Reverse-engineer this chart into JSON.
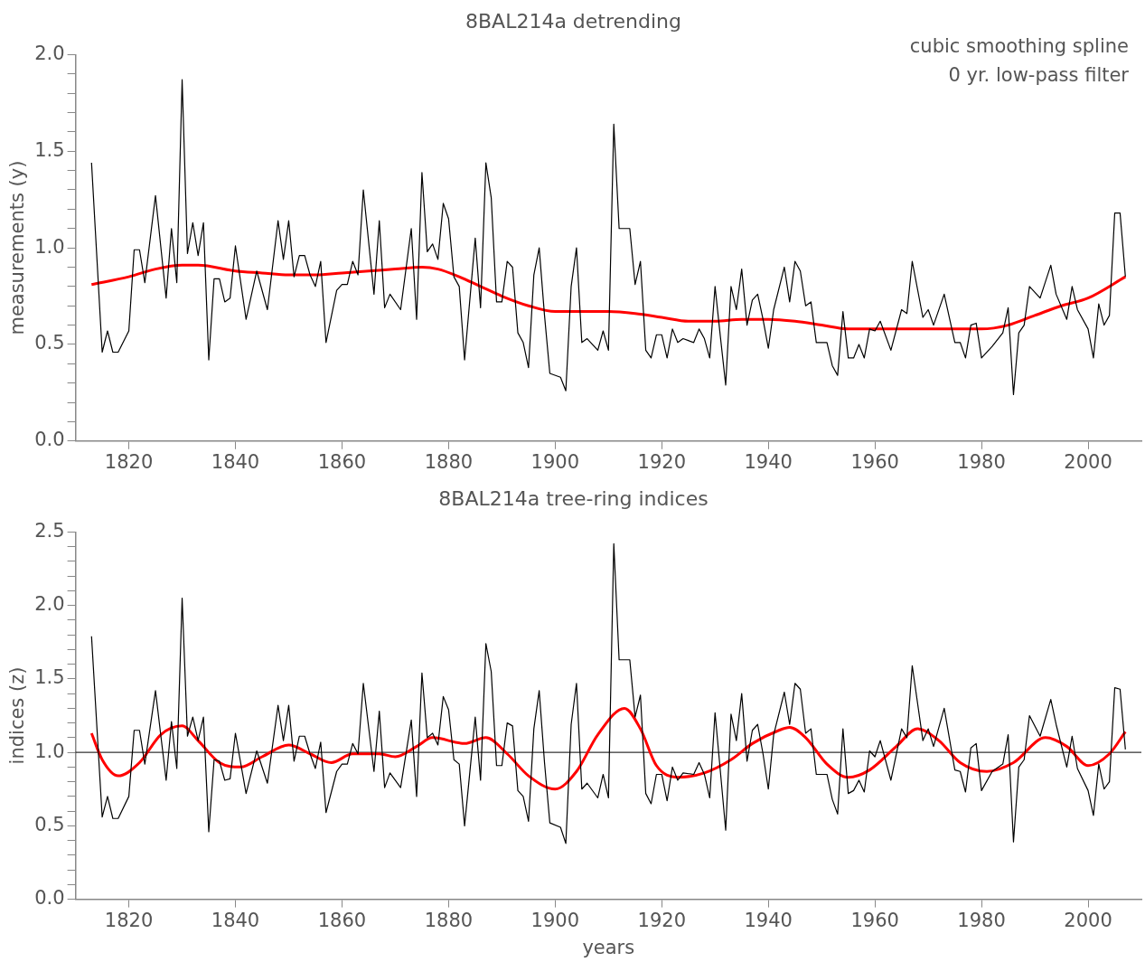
{
  "chart_data": [
    {
      "type": "line",
      "title": "8BAL214a detrending",
      "ylabel": "measurements (y)",
      "annotations": [
        "cubic smoothing spline",
        "0 yr. low-pass filter"
      ],
      "x": [
        1813,
        1815,
        1816,
        1817,
        1818,
        1820,
        1821,
        1822,
        1823,
        1825,
        1827,
        1828,
        1829,
        1830,
        1831,
        1832,
        1833,
        1834,
        1835,
        1836,
        1837,
        1838,
        1839,
        1840,
        1842,
        1844,
        1846,
        1848,
        1849,
        1850,
        1851,
        1852,
        1853,
        1854,
        1855,
        1856,
        1857,
        1859,
        1860,
        1861,
        1862,
        1863,
        1864,
        1866,
        1867,
        1868,
        1869,
        1871,
        1873,
        1874,
        1875,
        1876,
        1877,
        1878,
        1879,
        1880,
        1881,
        1882,
        1883,
        1885,
        1886,
        1887,
        1888,
        1889,
        1890,
        1891,
        1892,
        1893,
        1894,
        1895,
        1896,
        1897,
        1898,
        1899,
        1901,
        1902,
        1903,
        1904,
        1905,
        1906,
        1908,
        1909,
        1910,
        1911,
        1912,
        1914,
        1915,
        1916,
        1917,
        1918,
        1919,
        1920,
        1921,
        1922,
        1923,
        1924,
        1926,
        1927,
        1928,
        1929,
        1930,
        1931,
        1932,
        1933,
        1934,
        1935,
        1936,
        1937,
        1938,
        1939,
        1940,
        1941,
        1943,
        1944,
        1945,
        1946,
        1947,
        1948,
        1949,
        1951,
        1952,
        1953,
        1954,
        1955,
        1956,
        1957,
        1958,
        1959,
        1960,
        1961,
        1963,
        1965,
        1966,
        1967,
        1969,
        1970,
        1971,
        1973,
        1975,
        1976,
        1977,
        1978,
        1979,
        1980,
        1982,
        1984,
        1985,
        1986,
        1987,
        1988,
        1989,
        1991,
        1993,
        1994,
        1996,
        1997,
        1998,
        2000,
        2001,
        2002,
        2003,
        2004,
        2005,
        2006,
        2007
      ],
      "series": [
        {
          "color": "#000000",
          "values": [
            1.44,
            0.46,
            0.57,
            0.46,
            0.46,
            0.57,
            0.99,
            0.99,
            0.82,
            1.27,
            0.74,
            1.1,
            0.82,
            1.87,
            0.97,
            1.13,
            0.96,
            1.13,
            0.42,
            0.84,
            0.84,
            0.72,
            0.74,
            1.01,
            0.63,
            0.88,
            0.68,
            1.14,
            0.94,
            1.14,
            0.85,
            0.96,
            0.96,
            0.86,
            0.8,
            0.93,
            0.51,
            0.78,
            0.81,
            0.81,
            0.93,
            0.86,
            1.3,
            0.76,
            1.14,
            0.69,
            0.76,
            0.68,
            1.1,
            0.63,
            1.39,
            0.98,
            1.02,
            0.94,
            1.23,
            1.15,
            0.85,
            0.8,
            0.42,
            1.05,
            0.69,
            1.44,
            1.26,
            0.72,
            0.72,
            0.93,
            0.9,
            0.56,
            0.51,
            0.38,
            0.86,
            1.0,
            0.65,
            0.35,
            0.33,
            0.26,
            0.8,
            1.0,
            0.51,
            0.53,
            0.47,
            0.57,
            0.47,
            1.64,
            1.1,
            1.1,
            0.81,
            0.93,
            0.47,
            0.43,
            0.55,
            0.55,
            0.43,
            0.58,
            0.51,
            0.53,
            0.51,
            0.58,
            0.53,
            0.43,
            0.8,
            0.54,
            0.29,
            0.8,
            0.68,
            0.89,
            0.6,
            0.73,
            0.76,
            0.63,
            0.48,
            0.68,
            0.9,
            0.72,
            0.93,
            0.88,
            0.7,
            0.72,
            0.51,
            0.51,
            0.39,
            0.34,
            0.67,
            0.43,
            0.43,
            0.5,
            0.43,
            0.58,
            0.57,
            0.62,
            0.47,
            0.68,
            0.66,
            0.93,
            0.64,
            0.68,
            0.6,
            0.76,
            0.51,
            0.51,
            0.43,
            0.6,
            0.61,
            0.43,
            0.49,
            0.56,
            0.69,
            0.24,
            0.56,
            0.6,
            0.8,
            0.74,
            0.91,
            0.76,
            0.63,
            0.8,
            0.68,
            0.58,
            0.43,
            0.71,
            0.6,
            0.65,
            1.18,
            1.18,
            0.85
          ]
        },
        {
          "color": "#ff0000",
          "x": [
            1813,
            1820,
            1825,
            1830,
            1833,
            1840,
            1845,
            1850,
            1855,
            1860,
            1865,
            1870,
            1875,
            1878,
            1882,
            1886,
            1890,
            1895,
            1900,
            1905,
            1910,
            1915,
            1920,
            1925,
            1930,
            1935,
            1940,
            1945,
            1950,
            1955,
            1960,
            1970,
            1980,
            1985,
            1990,
            1995,
            2000,
            2007
          ],
          "values": [
            0.81,
            0.85,
            0.89,
            0.91,
            0.91,
            0.88,
            0.87,
            0.86,
            0.86,
            0.87,
            0.88,
            0.89,
            0.9,
            0.89,
            0.85,
            0.8,
            0.75,
            0.7,
            0.67,
            0.67,
            0.67,
            0.66,
            0.64,
            0.62,
            0.62,
            0.63,
            0.63,
            0.62,
            0.6,
            0.58,
            0.58,
            0.58,
            0.58,
            0.6,
            0.65,
            0.7,
            0.74,
            0.85
          ]
        }
      ],
      "xlim": [
        1810,
        2010
      ],
      "xticks": [
        1820,
        1840,
        1860,
        1880,
        1900,
        1920,
        1940,
        1960,
        1980,
        2000
      ],
      "ylim": [
        0,
        2
      ],
      "yticks": [
        {
          "value": 0,
          "label": "0.0"
        },
        {
          "value": 0.1,
          "label": null
        },
        {
          "value": 0.2,
          "label": null
        },
        {
          "value": 0.3,
          "label": null
        },
        {
          "value": 0.4,
          "label": null
        },
        {
          "value": 0.5,
          "label": "0.5"
        },
        {
          "value": 0.6,
          "label": null
        },
        {
          "value": 0.7,
          "label": null
        },
        {
          "value": 0.8,
          "label": null
        },
        {
          "value": 0.9,
          "label": null
        },
        {
          "value": 1,
          "label": "1.0"
        },
        {
          "value": 1.1,
          "label": null
        },
        {
          "value": 1.2,
          "label": null
        },
        {
          "value": 1.3,
          "label": null
        },
        {
          "value": 1.4,
          "label": null
        },
        {
          "value": 1.5,
          "label": "1.5"
        },
        {
          "value": 1.6,
          "label": null
        },
        {
          "value": 1.7,
          "label": null
        },
        {
          "value": 1.8,
          "label": null
        },
        {
          "value": 1.9,
          "label": null
        },
        {
          "value": 2,
          "label": "2.0"
        }
      ],
      "grid": false,
      "legend": false
    },
    {
      "type": "line",
      "title": "8BAL214a tree-ring indices",
      "ylabel": "indices (z)",
      "xlabel": "years",
      "x": [
        1813,
        1815,
        1816,
        1817,
        1818,
        1820,
        1821,
        1822,
        1823,
        1825,
        1827,
        1828,
        1829,
        1830,
        1831,
        1832,
        1833,
        1834,
        1835,
        1836,
        1837,
        1838,
        1839,
        1840,
        1842,
        1844,
        1846,
        1848,
        1849,
        1850,
        1851,
        1852,
        1853,
        1854,
        1855,
        1856,
        1857,
        1859,
        1860,
        1861,
        1862,
        1863,
        1864,
        1866,
        1867,
        1868,
        1869,
        1871,
        1873,
        1874,
        1875,
        1876,
        1877,
        1878,
        1879,
        1880,
        1881,
        1882,
        1883,
        1885,
        1886,
        1887,
        1888,
        1889,
        1890,
        1891,
        1892,
        1893,
        1894,
        1895,
        1896,
        1897,
        1898,
        1899,
        1901,
        1902,
        1903,
        1904,
        1905,
        1906,
        1908,
        1909,
        1910,
        1911,
        1912,
        1914,
        1915,
        1916,
        1917,
        1918,
        1919,
        1920,
        1921,
        1922,
        1923,
        1924,
        1926,
        1927,
        1928,
        1929,
        1930,
        1931,
        1932,
        1933,
        1934,
        1935,
        1936,
        1937,
        1938,
        1939,
        1940,
        1941,
        1943,
        1944,
        1945,
        1946,
        1947,
        1948,
        1949,
        1951,
        1952,
        1953,
        1954,
        1955,
        1956,
        1957,
        1958,
        1959,
        1960,
        1961,
        1963,
        1965,
        1966,
        1967,
        1969,
        1970,
        1971,
        1973,
        1975,
        1976,
        1977,
        1978,
        1979,
        1980,
        1982,
        1984,
        1985,
        1986,
        1987,
        1988,
        1989,
        1991,
        1993,
        1994,
        1996,
        1997,
        1998,
        2000,
        2001,
        2002,
        2003,
        2004,
        2005,
        2006,
        2007
      ],
      "series": [
        {
          "color": "#000000",
          "values": [
            1.79,
            0.56,
            0.7,
            0.55,
            0.55,
            0.7,
            1.15,
            1.15,
            0.92,
            1.42,
            0.81,
            1.21,
            0.89,
            2.05,
            1.11,
            1.24,
            1.08,
            1.24,
            0.46,
            0.95,
            0.94,
            0.81,
            0.82,
            1.13,
            0.72,
            1.01,
            0.79,
            1.32,
            1.08,
            1.32,
            0.94,
            1.11,
            1.11,
            0.99,
            0.89,
            1.07,
            0.59,
            0.87,
            0.92,
            0.92,
            1.06,
            0.99,
            1.47,
            0.87,
            1.28,
            0.76,
            0.86,
            0.76,
            1.22,
            0.7,
            1.54,
            1.1,
            1.13,
            1.05,
            1.38,
            1.29,
            0.95,
            0.92,
            0.5,
            1.24,
            0.81,
            1.74,
            1.55,
            0.91,
            0.91,
            1.2,
            1.18,
            0.74,
            0.7,
            0.53,
            1.16,
            1.42,
            0.93,
            0.52,
            0.49,
            0.38,
            1.19,
            1.47,
            0.75,
            0.79,
            0.69,
            0.85,
            0.69,
            2.42,
            1.63,
            1.63,
            1.24,
            1.39,
            0.72,
            0.65,
            0.85,
            0.85,
            0.67,
            0.9,
            0.81,
            0.86,
            0.85,
            0.93,
            0.85,
            0.69,
            1.27,
            0.87,
            0.47,
            1.26,
            1.08,
            1.4,
            0.94,
            1.15,
            1.19,
            0.99,
            0.75,
            1.12,
            1.41,
            1.19,
            1.47,
            1.43,
            1.13,
            1.16,
            0.85,
            0.85,
            0.68,
            0.58,
            1.16,
            0.72,
            0.74,
            0.81,
            0.73,
            1.01,
            0.97,
            1.08,
            0.81,
            1.16,
            1.1,
            1.59,
            1.08,
            1.16,
            1.04,
            1.3,
            0.88,
            0.87,
            0.73,
            1.03,
            1.06,
            0.74,
            0.87,
            0.92,
            1.12,
            0.39,
            0.9,
            0.95,
            1.25,
            1.11,
            1.36,
            1.19,
            0.9,
            1.11,
            0.89,
            0.74,
            0.57,
            0.92,
            0.75,
            0.8,
            1.44,
            1.43,
            1.02
          ]
        },
        {
          "color": "#ff0000",
          "x": [
            1813,
            1815,
            1818,
            1822,
            1826,
            1830,
            1833,
            1837,
            1841,
            1845,
            1850,
            1854,
            1858,
            1862,
            1867,
            1870,
            1874,
            1877,
            1883,
            1887,
            1891,
            1895,
            1900,
            1904,
            1908,
            1913,
            1916,
            1919,
            1923,
            1928,
            1933,
            1937,
            1942,
            1944,
            1947,
            1951,
            1955,
            1959,
            1964,
            1968,
            1972,
            1976,
            1981,
            1986,
            1992,
            1996,
            2000,
            2004,
            2007
          ],
          "values": [
            1.13,
            0.95,
            0.84,
            0.93,
            1.12,
            1.18,
            1.08,
            0.93,
            0.9,
            0.97,
            1.05,
            0.99,
            0.93,
            0.99,
            0.99,
            0.97,
            1.04,
            1.1,
            1.06,
            1.1,
            0.99,
            0.84,
            0.75,
            0.87,
            1.12,
            1.3,
            1.16,
            0.91,
            0.83,
            0.86,
            0.95,
            1.06,
            1.15,
            1.17,
            1.1,
            0.92,
            0.83,
            0.88,
            1.04,
            1.16,
            1.08,
            0.93,
            0.87,
            0.93,
            1.1,
            1.04,
            0.91,
            0.99,
            1.14
          ]
        }
      ],
      "ref_lines": [
        {
          "axis": "y",
          "value": 1.0,
          "color": "#000000"
        }
      ],
      "xlim": [
        1810,
        2010
      ],
      "xticks": [
        1820,
        1840,
        1860,
        1880,
        1900,
        1920,
        1940,
        1960,
        1980,
        2000
      ],
      "ylim": [
        0,
        2.5
      ],
      "yticks": [
        {
          "value": 0,
          "label": "0.0"
        },
        {
          "value": 0.1,
          "label": null
        },
        {
          "value": 0.2,
          "label": null
        },
        {
          "value": 0.3,
          "label": null
        },
        {
          "value": 0.4,
          "label": null
        },
        {
          "value": 0.5,
          "label": "0.5"
        },
        {
          "value": 0.6,
          "label": null
        },
        {
          "value": 0.7,
          "label": null
        },
        {
          "value": 0.8,
          "label": null
        },
        {
          "value": 0.9,
          "label": null
        },
        {
          "value": 1,
          "label": "1.0"
        },
        {
          "value": 1.1,
          "label": null
        },
        {
          "value": 1.2,
          "label": null
        },
        {
          "value": 1.3,
          "label": null
        },
        {
          "value": 1.4,
          "label": null
        },
        {
          "value": 1.5,
          "label": "1.5"
        },
        {
          "value": 1.6,
          "label": null
        },
        {
          "value": 1.7,
          "label": null
        },
        {
          "value": 1.8,
          "label": null
        },
        {
          "value": 1.9,
          "label": null
        },
        {
          "value": 2,
          "label": "2.0"
        },
        {
          "value": 2.1,
          "label": null
        },
        {
          "value": 2.2,
          "label": null
        },
        {
          "value": 2.3,
          "label": null
        },
        {
          "value": 2.4,
          "label": null
        },
        {
          "value": 2.5,
          "label": "2.5"
        }
      ],
      "grid": false,
      "legend": false
    }
  ]
}
